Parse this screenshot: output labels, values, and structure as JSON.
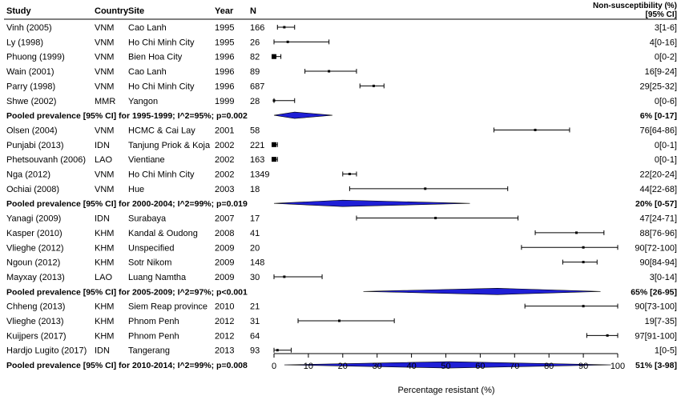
{
  "chart_data": {
    "type": "forest",
    "headers": {
      "study": "Study",
      "country": "Country",
      "site": "Site",
      "year": "Year",
      "n": "N",
      "estimate_line1": "Non-susceptibility (%)",
      "estimate_line2": "[95% CI]"
    },
    "xlabel": "Percentage resistant (%)",
    "xlim": [
      0,
      100
    ],
    "xticks": [
      0,
      10,
      20,
      30,
      40,
      50,
      60,
      70,
      80,
      90,
      100
    ],
    "pooled_color": "#1f1fd6",
    "rows": [
      {
        "kind": "study",
        "study": "Vinh (2005)",
        "country": "VNM",
        "site": "Cao Lanh",
        "year": "1995",
        "n": "166",
        "est": 3,
        "lo": 1,
        "hi": 6,
        "label": "3[1-6]"
      },
      {
        "kind": "study",
        "study": "Ly (1998)",
        "country": "VNM",
        "site": "Ho Chi Minh City",
        "year": "1995",
        "n": "26",
        "est": 4,
        "lo": 0,
        "hi": 16,
        "label": "4[0-16]"
      },
      {
        "kind": "study",
        "study": "Phuong (1999)",
        "country": "VNM",
        "site": "Bien Hoa City",
        "year": "1996",
        "n": "82",
        "est": 0,
        "lo": 0,
        "hi": 2,
        "label": "0[0-2]"
      },
      {
        "kind": "study",
        "study": "Wain (2001)",
        "country": "VNM",
        "site": "Cao Lanh",
        "year": "1996",
        "n": "89",
        "est": 16,
        "lo": 9,
        "hi": 24,
        "label": "16[9-24]"
      },
      {
        "kind": "study",
        "study": "Parry (1998)",
        "country": "VNM",
        "site": "Ho Chi Minh City",
        "year": "1996",
        "n": "687",
        "est": 29,
        "lo": 25,
        "hi": 32,
        "label": "29[25-32]"
      },
      {
        "kind": "study",
        "study": "Shwe (2002)",
        "country": "MMR",
        "site": "Yangon",
        "year": "1999",
        "n": "28",
        "est": 0,
        "lo": 0,
        "hi": 6,
        "label": "0[0-6]"
      },
      {
        "kind": "pooled",
        "study": "Pooled prevalence [95% CI] for 1995-1999; I^2=95%; p=0.002",
        "est": 6,
        "lo": 0,
        "hi": 17,
        "label": "6% [0-17]"
      },
      {
        "kind": "study",
        "study": "Olsen (2004)",
        "country": "VNM",
        "site": "HCMC & Cai Lay",
        "year": "2001",
        "n": "58",
        "est": 76,
        "lo": 64,
        "hi": 86,
        "label": "76[64-86]"
      },
      {
        "kind": "study",
        "study": "Punjabi (2013)",
        "country": "IDN",
        "site": "Tanjung Priok & Koja",
        "year": "2002",
        "n": "221",
        "est": 0,
        "lo": 0,
        "hi": 1,
        "label": "0[0-1]"
      },
      {
        "kind": "study",
        "study": "Phetsouvanh (2006)",
        "country": "LAO",
        "site": "Vientiane",
        "year": "2002",
        "n": "163",
        "est": 0,
        "lo": 0,
        "hi": 1,
        "label": "0[0-1]"
      },
      {
        "kind": "study",
        "study": "Nga (2012)",
        "country": "VNM",
        "site": "Ho Chi Minh City",
        "year": "2002",
        "n": "1349",
        "est": 22,
        "lo": 20,
        "hi": 24,
        "label": "22[20-24]"
      },
      {
        "kind": "study",
        "study": "Ochiai (2008)",
        "country": "VNM",
        "site": "Hue",
        "year": "2003",
        "n": "18",
        "est": 44,
        "lo": 22,
        "hi": 68,
        "label": "44[22-68]"
      },
      {
        "kind": "pooled",
        "study": "Pooled prevalence [95% CI] for 2000-2004; I^2=99%; p=0.019",
        "est": 20,
        "lo": 0,
        "hi": 57,
        "label": "20% [0-57]"
      },
      {
        "kind": "study",
        "study": "Yanagi (2009)",
        "country": "IDN",
        "site": "Surabaya",
        "year": "2007",
        "n": "17",
        "est": 47,
        "lo": 24,
        "hi": 71,
        "label": "47[24-71]"
      },
      {
        "kind": "study",
        "study": "Kasper (2010)",
        "country": "KHM",
        "site": "Kandal & Oudong",
        "year": "2008",
        "n": "41",
        "est": 88,
        "lo": 76,
        "hi": 96,
        "label": "88[76-96]"
      },
      {
        "kind": "study",
        "study": "Vlieghe (2012)",
        "country": "KHM",
        "site": "Unspecified",
        "year": "2009",
        "n": "20",
        "est": 90,
        "lo": 72,
        "hi": 100,
        "label": "90[72-100]"
      },
      {
        "kind": "study",
        "study": "Ngoun (2012)",
        "country": "KHM",
        "site": "Sotr Nikom",
        "year": "2009",
        "n": "148",
        "est": 90,
        "lo": 84,
        "hi": 94,
        "label": "90[84-94]"
      },
      {
        "kind": "study",
        "study": "Mayxay (2013)",
        "country": "LAO",
        "site": "Luang Namtha",
        "year": "2009",
        "n": "30",
        "est": 3,
        "lo": 0,
        "hi": 14,
        "label": "3[0-14]"
      },
      {
        "kind": "pooled",
        "study": "Pooled prevalence [95% CI] for 2005-2009; I^2=97%; p<0.001",
        "est": 65,
        "lo": 26,
        "hi": 95,
        "label": "65% [26-95]"
      },
      {
        "kind": "study",
        "study": "Chheng (2013)",
        "country": "KHM",
        "site": "Siem Reap province",
        "year": "2010",
        "n": "21",
        "est": 90,
        "lo": 73,
        "hi": 100,
        "label": "90[73-100]"
      },
      {
        "kind": "study",
        "study": "Vlieghe (2013)",
        "country": "KHM",
        "site": "Phnom Penh",
        "year": "2012",
        "n": "31",
        "est": 19,
        "lo": 7,
        "hi": 35,
        "label": "19[7-35]"
      },
      {
        "kind": "study",
        "study": "Kuijpers (2017)",
        "country": "KHM",
        "site": "Phnom Penh",
        "year": "2012",
        "n": "64",
        "est": 97,
        "lo": 91,
        "hi": 100,
        "label": "97[91-100]"
      },
      {
        "kind": "study",
        "study": "Hardjo Lugito (2017)",
        "country": "IDN",
        "site": "Tangerang",
        "year": "2013",
        "n": "93",
        "est": 1,
        "lo": 0,
        "hi": 5,
        "label": "1[0-5]"
      },
      {
        "kind": "pooled",
        "study": "Pooled prevalence [95% CI] for 2010-2014; I^2=99%; p=0.008",
        "est": 51,
        "lo": 3,
        "hi": 98,
        "label": "51% [3-98]"
      }
    ]
  }
}
